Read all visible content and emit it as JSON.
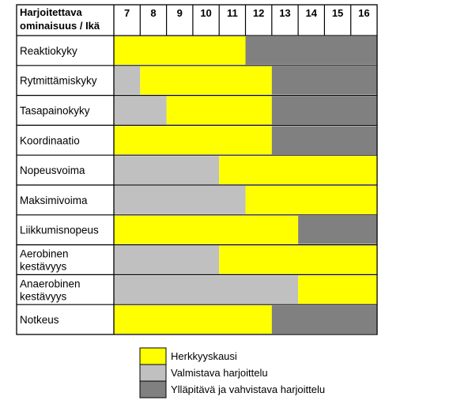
{
  "chart_data": {
    "type": "table",
    "header_label_line1": "Harjoitettava",
    "header_label_line2": "ominaisuus / Ikä",
    "ages": [
      "7",
      "8",
      "9",
      "10",
      "11",
      "12",
      "13",
      "14",
      "15",
      "16"
    ],
    "rows": [
      {
        "label": [
          "Reaktiokyky"
        ],
        "segments": [
          {
            "from": 7,
            "to": 11,
            "phase": "herkkyys"
          },
          {
            "from": 12,
            "to": 16,
            "phase": "yllapitava"
          }
        ]
      },
      {
        "label": [
          "Rytmittämiskyky"
        ],
        "segments": [
          {
            "from": 7,
            "to": 7,
            "phase": "valmistava"
          },
          {
            "from": 8,
            "to": 12,
            "phase": "herkkyys"
          },
          {
            "from": 13,
            "to": 16,
            "phase": "yllapitava"
          }
        ]
      },
      {
        "label": [
          "Tasapainokyky"
        ],
        "segments": [
          {
            "from": 7,
            "to": 8,
            "phase": "valmistava"
          },
          {
            "from": 9,
            "to": 12,
            "phase": "herkkyys"
          },
          {
            "from": 13,
            "to": 16,
            "phase": "yllapitava"
          }
        ]
      },
      {
        "label": [
          "Koordinaatio"
        ],
        "segments": [
          {
            "from": 7,
            "to": 12,
            "phase": "herkkyys"
          },
          {
            "from": 13,
            "to": 16,
            "phase": "yllapitava"
          }
        ]
      },
      {
        "label": [
          "Nopeusvoima"
        ],
        "segments": [
          {
            "from": 7,
            "to": 10,
            "phase": "valmistava"
          },
          {
            "from": 11,
            "to": 16,
            "phase": "herkkyys"
          }
        ]
      },
      {
        "label": [
          "Maksimivoima"
        ],
        "segments": [
          {
            "from": 7,
            "to": 11,
            "phase": "valmistava"
          },
          {
            "from": 12,
            "to": 16,
            "phase": "herkkyys"
          }
        ]
      },
      {
        "label": [
          "Liikkumisnopeus"
        ],
        "segments": [
          {
            "from": 7,
            "to": 13,
            "phase": "herkkyys"
          },
          {
            "from": 14,
            "to": 16,
            "phase": "yllapitava"
          }
        ]
      },
      {
        "label": [
          "Aerobinen",
          "kestävyys"
        ],
        "segments": [
          {
            "from": 7,
            "to": 10,
            "phase": "valmistava"
          },
          {
            "from": 11,
            "to": 16,
            "phase": "herkkyys"
          }
        ]
      },
      {
        "label": [
          "Anaerobinen",
          "kestävyys"
        ],
        "segments": [
          {
            "from": 7,
            "to": 13,
            "phase": "valmistava"
          },
          {
            "from": 14,
            "to": 16,
            "phase": "herkkyys"
          }
        ]
      },
      {
        "label": [
          "Notkeus"
        ],
        "segments": [
          {
            "from": 7,
            "to": 12,
            "phase": "herkkyys"
          },
          {
            "from": 13,
            "to": 16,
            "phase": "yllapitava"
          }
        ]
      }
    ],
    "legend": [
      {
        "phase": "herkkyys",
        "label": "Herkkyyskausi"
      },
      {
        "phase": "valmistava",
        "label": "Valmistava harjoittelu"
      },
      {
        "phase": "yllapitava",
        "label": "Ylläpitävä ja vahvistava harjoittelu"
      }
    ],
    "colors": {
      "herkkyys": "#ffff00",
      "valmistava": "#c0c0c0",
      "yllapitava": "#808080"
    }
  }
}
